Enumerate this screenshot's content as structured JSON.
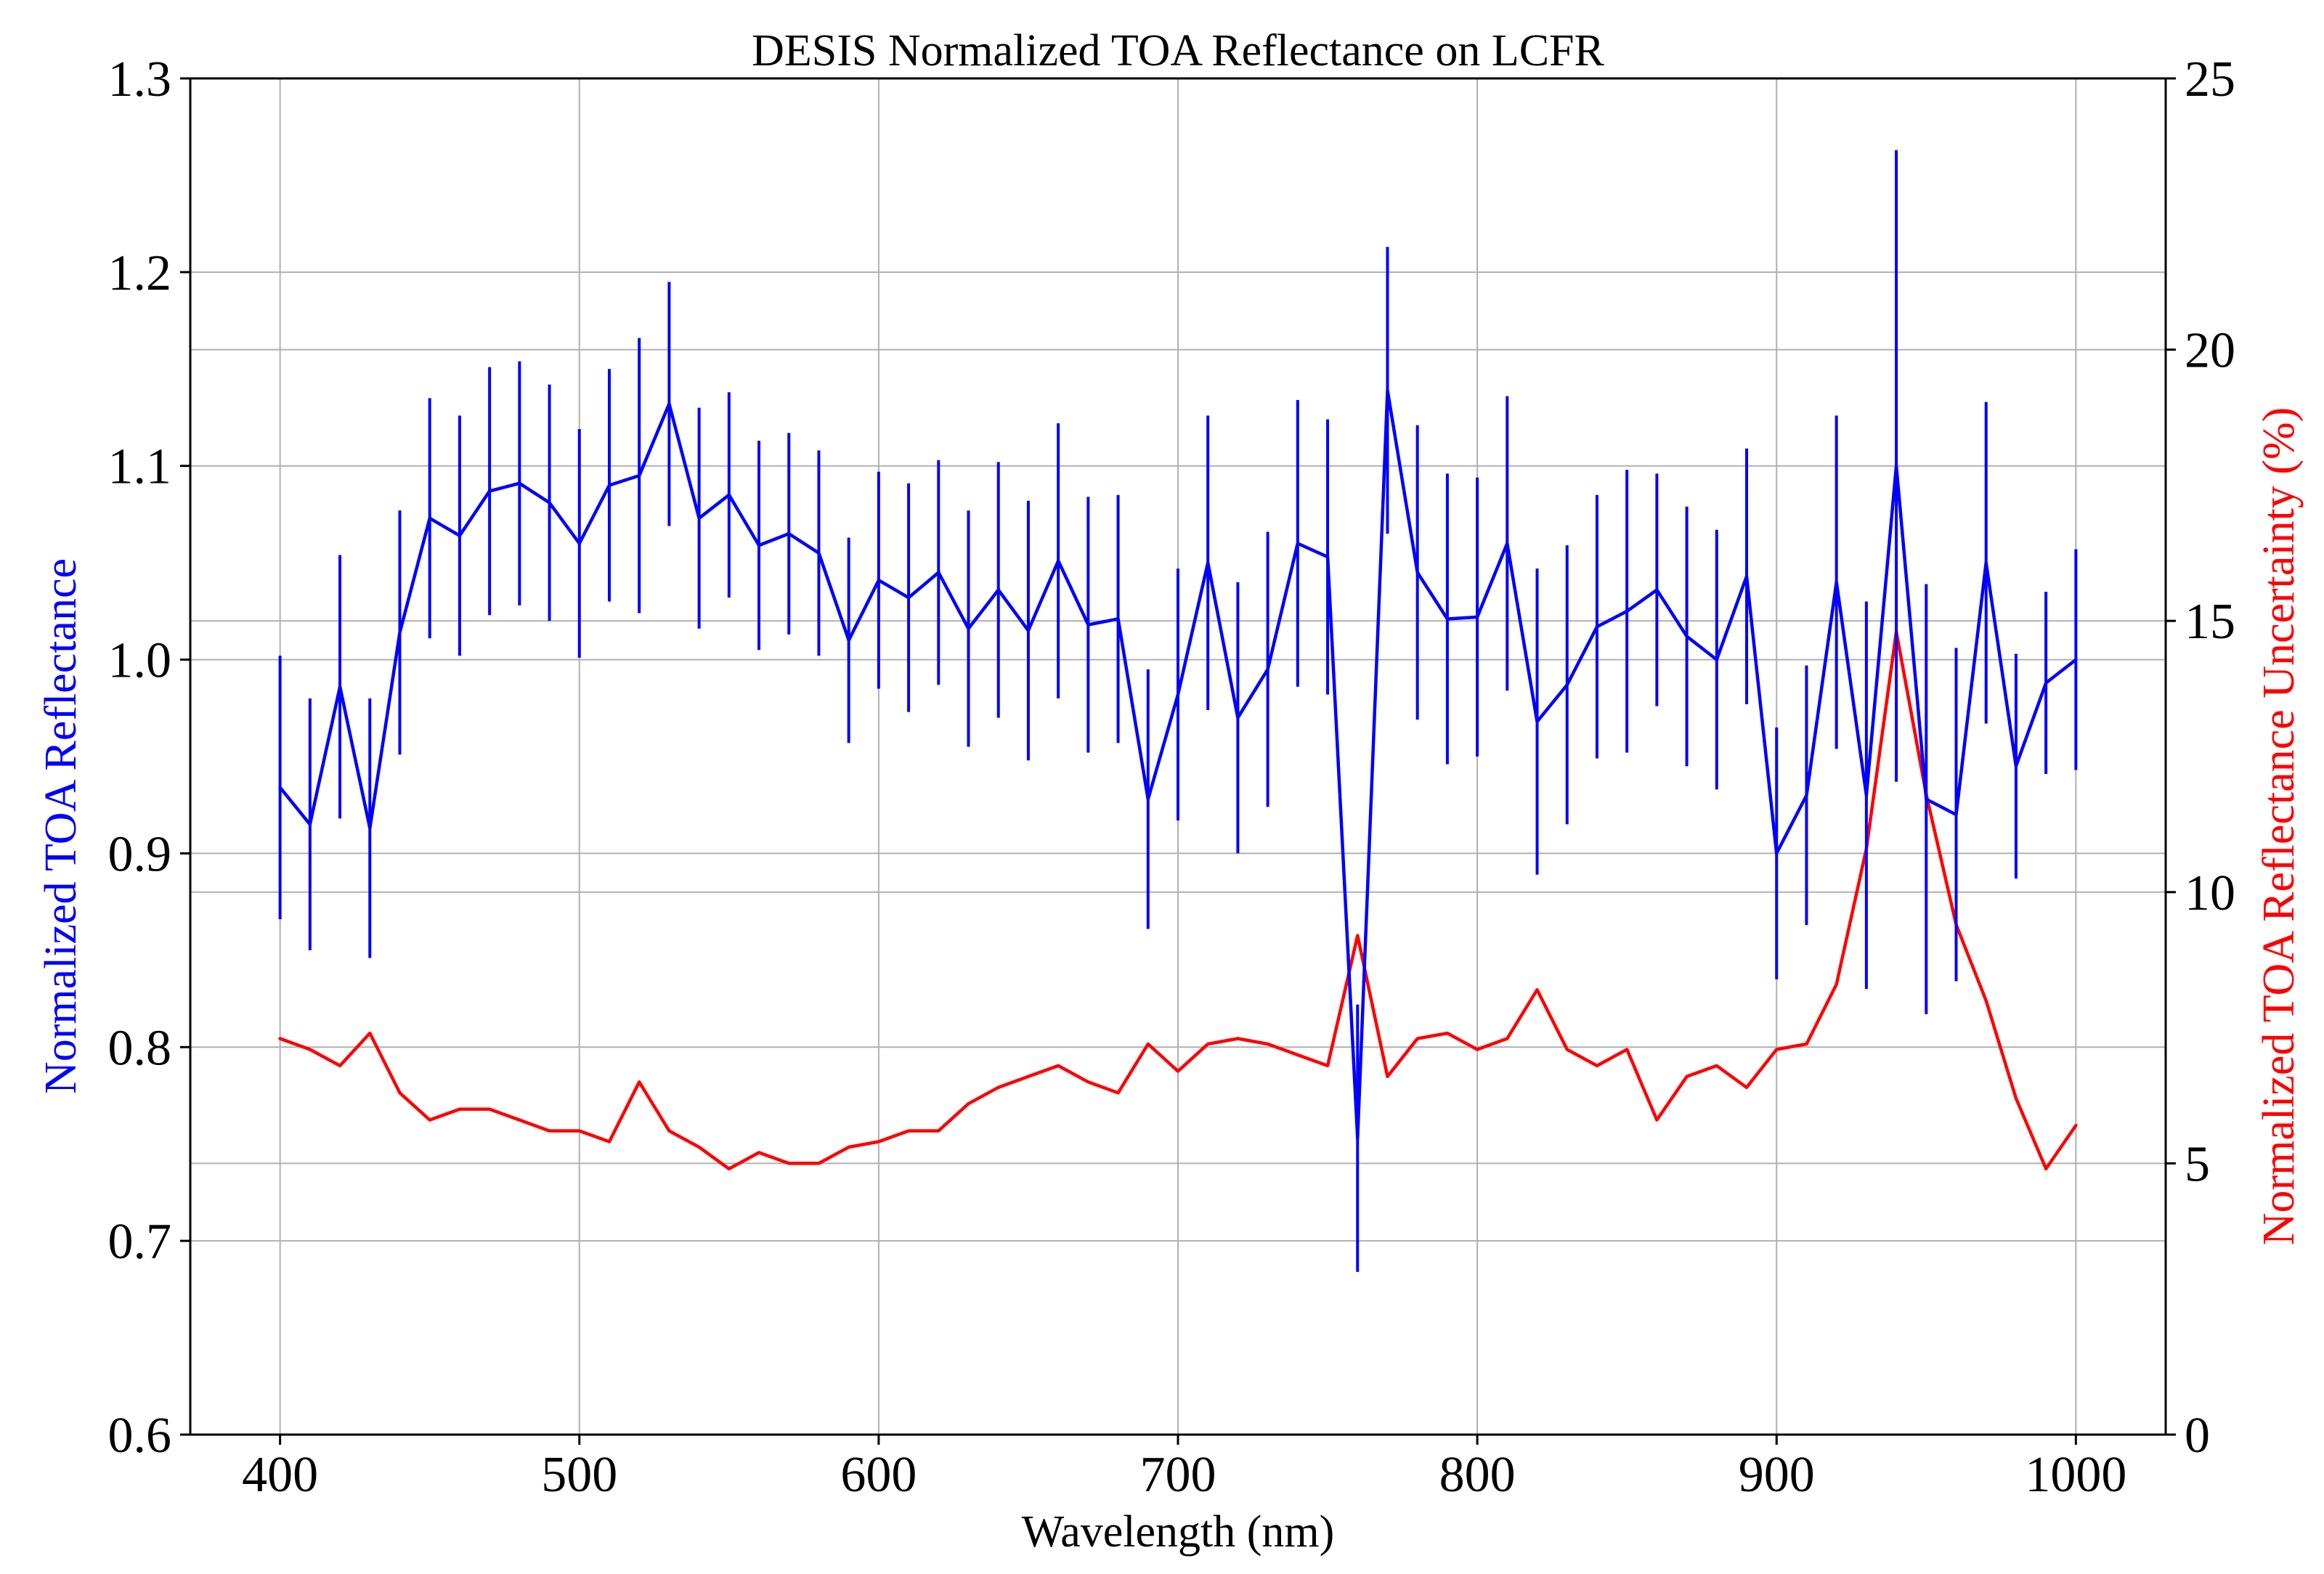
{
  "colors": {
    "reflectance": "#0000ff",
    "uncertainty": "#ff0000",
    "grid": "#b0b0b0",
    "axis": "#000000",
    "background": "#ffffff"
  },
  "chart_data": {
    "type": "line",
    "title": "DESIS Normalized TOA Reflectance on LCFR",
    "xlabel": "Wavelength (nm)",
    "ylabel": "Normalized TOA Reflectance",
    "y2label": "Normalized TOA Reflectance Uncertainty (%)",
    "xlim": [
      370,
      1030
    ],
    "ylim": [
      0.6,
      1.3
    ],
    "y2lim": [
      0,
      25
    ],
    "grid": true,
    "xticks": [
      400,
      500,
      600,
      700,
      800,
      900,
      1000
    ],
    "xtick_labels": [
      "400",
      "500",
      "600",
      "700",
      "800",
      "900",
      "1000"
    ],
    "yticks": [
      0.6,
      0.7,
      0.8,
      0.9,
      1.0,
      1.1,
      1.2,
      1.3
    ],
    "ytick_labels": [
      "0.6",
      "0.7",
      "0.8",
      "0.9",
      "1.0",
      "1.1",
      "1.2",
      "1.3"
    ],
    "y2ticks": [
      0,
      5,
      10,
      15,
      20,
      25
    ],
    "y2tick_labels": [
      "0",
      "5",
      "10",
      "15",
      "20",
      "25"
    ],
    "x": [
      400,
      410,
      420,
      430,
      440,
      450,
      460,
      470,
      480,
      490,
      500,
      510,
      520,
      530,
      540,
      550,
      560,
      570,
      580,
      590,
      600,
      610,
      620,
      630,
      640,
      650,
      660,
      670,
      680,
      690,
      700,
      710,
      720,
      730,
      740,
      750,
      760,
      770,
      780,
      790,
      800,
      810,
      820,
      830,
      840,
      850,
      860,
      870,
      880,
      890,
      900,
      910,
      920,
      930,
      940,
      950,
      960,
      970,
      980,
      990,
      1000
    ],
    "series": [
      {
        "name": "Normalized TOA Reflectance",
        "axis": "left",
        "color": "#0000ff",
        "errorbars": true,
        "values": [
          0.934,
          0.915,
          0.986,
          0.913,
          1.014,
          1.073,
          1.064,
          1.087,
          1.091,
          1.081,
          1.06,
          1.09,
          1.095,
          1.132,
          1.073,
          1.085,
          1.059,
          1.065,
          1.055,
          1.01,
          1.041,
          1.032,
          1.045,
          1.016,
          1.036,
          1.015,
          1.051,
          1.018,
          1.021,
          0.928,
          0.982,
          1.05,
          0.97,
          0.995,
          1.06,
          1.053,
          0.753,
          1.139,
          1.045,
          1.021,
          1.022,
          1.06,
          0.968,
          0.987,
          1.017,
          1.025,
          1.036,
          1.012,
          1.0,
          1.043,
          0.9,
          0.93,
          1.04,
          0.93,
          1.1,
          0.928,
          0.92,
          1.05,
          0.945,
          0.988,
          1.0
        ],
        "errors": [
          0.068,
          0.065,
          0.068,
          0.067,
          0.063,
          0.062,
          0.062,
          0.064,
          0.063,
          0.061,
          0.059,
          0.06,
          0.071,
          0.063,
          0.057,
          0.053,
          0.054,
          0.052,
          0.053,
          0.053,
          0.056,
          0.059,
          0.058,
          0.061,
          0.066,
          0.067,
          0.071,
          0.066,
          0.064,
          0.067,
          0.065,
          0.076,
          0.07,
          0.071,
          0.074,
          0.071,
          0.069,
          0.074,
          0.076,
          0.075,
          0.072,
          0.076,
          0.079,
          0.072,
          0.068,
          0.073,
          0.06,
          0.067,
          0.067,
          0.066,
          0.065,
          0.067,
          0.086,
          0.1,
          0.163,
          0.111,
          0.086,
          0.083,
          0.058,
          0.047,
          0.057
        ]
      },
      {
        "name": "Normalized TOA Reflectance Uncertainty (%)",
        "axis": "right",
        "color": "#ff0000",
        "values": [
          7.3,
          7.1,
          6.8,
          7.4,
          6.3,
          5.8,
          6.0,
          6.0,
          5.8,
          5.6,
          5.6,
          5.4,
          6.5,
          5.6,
          5.3,
          4.9,
          5.2,
          5.0,
          5.0,
          5.3,
          5.4,
          5.6,
          5.6,
          6.1,
          6.4,
          6.6,
          6.8,
          6.5,
          6.3,
          7.2,
          6.7,
          7.2,
          7.3,
          7.2,
          7.0,
          6.8,
          9.2,
          6.6,
          7.3,
          7.4,
          7.1,
          7.3,
          8.2,
          7.1,
          6.8,
          7.1,
          5.8,
          6.6,
          6.8,
          6.4,
          7.1,
          7.2,
          8.3,
          10.8,
          14.8,
          11.8,
          9.4,
          8.0,
          6.2,
          4.9,
          5.7
        ]
      }
    ]
  }
}
